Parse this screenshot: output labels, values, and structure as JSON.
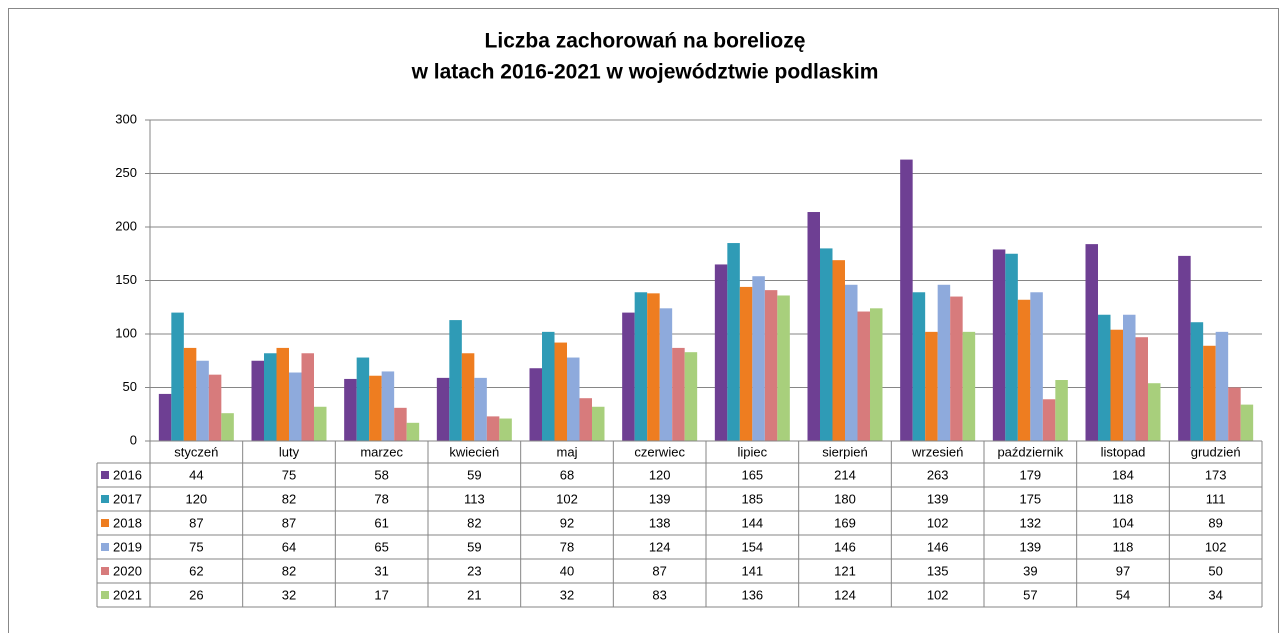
{
  "chart_data": {
    "type": "bar",
    "title": [
      "Liczba zachorowań na boreliozę",
      "w latach 2016-2021 w województwie podlaskim"
    ],
    "categories": [
      "styczeń",
      "luty",
      "marzec",
      "kwiecień",
      "maj",
      "czerwiec",
      "lipiec",
      "sierpień",
      "wrzesień",
      "październik",
      "listopad",
      "grudzień"
    ],
    "series": [
      {
        "name": "2016",
        "color": "#6e3f93",
        "values": [
          44,
          75,
          58,
          59,
          68,
          120,
          165,
          214,
          263,
          179,
          184,
          173
        ]
      },
      {
        "name": "2017",
        "color": "#2f9bb6",
        "values": [
          120,
          82,
          78,
          113,
          102,
          139,
          185,
          180,
          139,
          175,
          118,
          111
        ]
      },
      {
        "name": "2018",
        "color": "#ee7d20",
        "values": [
          87,
          87,
          61,
          82,
          92,
          138,
          144,
          169,
          102,
          132,
          104,
          89
        ]
      },
      {
        "name": "2019",
        "color": "#8eaadc",
        "values": [
          75,
          64,
          65,
          59,
          78,
          124,
          154,
          146,
          146,
          139,
          118,
          102
        ]
      },
      {
        "name": "2020",
        "color": "#d77b7c",
        "values": [
          62,
          82,
          31,
          23,
          40,
          87,
          141,
          121,
          135,
          39,
          97,
          50
        ]
      },
      {
        "name": "2021",
        "color": "#a8cf7c",
        "values": [
          26,
          32,
          17,
          21,
          32,
          83,
          136,
          124,
          102,
          57,
          54,
          34
        ]
      }
    ],
    "ylim": [
      0,
      300
    ],
    "yticks": [
      0,
      50,
      100,
      150,
      200,
      250,
      300
    ],
    "grid": true
  }
}
